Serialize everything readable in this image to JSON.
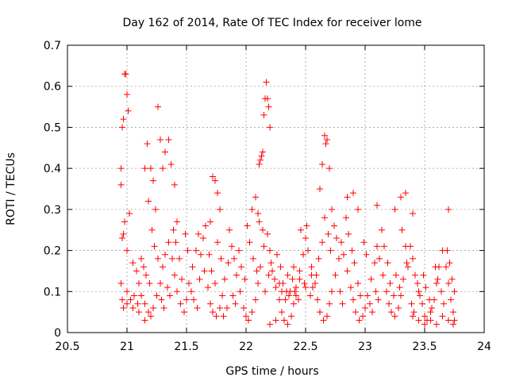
{
  "chart_data": {
    "type": "scatter",
    "title": "Day 162 of 2014, Rate Of TEC Index for receiver lome",
    "xlabel": "GPS time / hours",
    "ylabel": "ROTI / TECUs",
    "xlim": [
      20.5,
      24
    ],
    "ylim": [
      0,
      0.7
    ],
    "xticks": [
      "20.5",
      "21",
      "21.5",
      "22",
      "22.5",
      "23",
      "23.5",
      "24"
    ],
    "yticks": [
      "0",
      "0.1",
      "0.2",
      "0.3",
      "0.4",
      "0.5",
      "0.6",
      "0.7"
    ],
    "grid": true,
    "marker": "plus",
    "series": [
      {
        "name": "ROTI",
        "color": "#ff0000",
        "points": [
          [
            20.95,
            0.4
          ],
          [
            20.95,
            0.36
          ],
          [
            20.96,
            0.5
          ],
          [
            20.97,
            0.52
          ],
          [
            20.98,
            0.63
          ],
          [
            20.99,
            0.63
          ],
          [
            21.0,
            0.58
          ],
          [
            21.01,
            0.54
          ],
          [
            20.96,
            0.23
          ],
          [
            20.97,
            0.24
          ],
          [
            20.98,
            0.27
          ],
          [
            21.0,
            0.2
          ],
          [
            20.95,
            0.12
          ],
          [
            20.96,
            0.08
          ],
          [
            20.97,
            0.06
          ],
          [
            21.02,
            0.29
          ],
          [
            21.15,
            0.4
          ],
          [
            21.17,
            0.46
          ],
          [
            21.2,
            0.4
          ],
          [
            21.22,
            0.37
          ],
          [
            21.26,
            0.55
          ],
          [
            21.28,
            0.47
          ],
          [
            21.3,
            0.4
          ],
          [
            21.32,
            0.44
          ],
          [
            21.35,
            0.47
          ],
          [
            21.37,
            0.41
          ],
          [
            21.4,
            0.36
          ],
          [
            21.18,
            0.32
          ],
          [
            21.24,
            0.3
          ],
          [
            21.42,
            0.27
          ],
          [
            21.72,
            0.38
          ],
          [
            21.74,
            0.37
          ],
          [
            21.76,
            0.34
          ],
          [
            21.78,
            0.3
          ],
          [
            21.7,
            0.27
          ],
          [
            22.05,
            0.3
          ],
          [
            22.08,
            0.33
          ],
          [
            22.1,
            0.29
          ],
          [
            22.12,
            0.42
          ],
          [
            22.13,
            0.43
          ],
          [
            22.14,
            0.44
          ],
          [
            22.15,
            0.53
          ],
          [
            22.16,
            0.57
          ],
          [
            22.17,
            0.61
          ],
          [
            22.18,
            0.57
          ],
          [
            22.19,
            0.55
          ],
          [
            22.2,
            0.5
          ],
          [
            22.11,
            0.41
          ],
          [
            22.62,
            0.35
          ],
          [
            22.64,
            0.41
          ],
          [
            22.66,
            0.48
          ],
          [
            22.67,
            0.46
          ],
          [
            22.68,
            0.47
          ],
          [
            22.7,
            0.4
          ],
          [
            22.72,
            0.3
          ],
          [
            22.85,
            0.33
          ],
          [
            22.9,
            0.34
          ],
          [
            22.94,
            0.3
          ],
          [
            23.1,
            0.31
          ],
          [
            23.25,
            0.3
          ],
          [
            23.3,
            0.33
          ],
          [
            23.34,
            0.34
          ],
          [
            23.4,
            0.29
          ],
          [
            23.7,
            0.3
          ],
          [
            21.05,
            0.17
          ],
          [
            21.08,
            0.15
          ],
          [
            21.1,
            0.12
          ],
          [
            21.12,
            0.09
          ],
          [
            21.15,
            0.07
          ],
          [
            21.18,
            0.05
          ],
          [
            21.2,
            0.04
          ],
          [
            21.22,
            0.06
          ],
          [
            21.25,
            0.09
          ],
          [
            21.28,
            0.12
          ],
          [
            21.3,
            0.16
          ],
          [
            21.32,
            0.19
          ],
          [
            21.35,
            0.22
          ],
          [
            21.38,
            0.18
          ],
          [
            21.4,
            0.14
          ],
          [
            21.42,
            0.1
          ],
          [
            21.45,
            0.07
          ],
          [
            21.48,
            0.05
          ],
          [
            21.5,
            0.08
          ],
          [
            21.52,
            0.12
          ],
          [
            21.55,
            0.16
          ],
          [
            21.58,
            0.2
          ],
          [
            21.6,
            0.24
          ],
          [
            21.62,
            0.19
          ],
          [
            21.65,
            0.15
          ],
          [
            21.68,
            0.11
          ],
          [
            21.7,
            0.07
          ],
          [
            21.72,
            0.05
          ],
          [
            21.75,
            0.04
          ],
          [
            21.78,
            0.06
          ],
          [
            21.8,
            0.09
          ],
          [
            21.82,
            0.13
          ],
          [
            21.85,
            0.17
          ],
          [
            21.88,
            0.21
          ],
          [
            21.9,
            0.18
          ],
          [
            21.92,
            0.14
          ],
          [
            21.95,
            0.1
          ],
          [
            21.98,
            0.06
          ],
          [
            22.0,
            0.04
          ],
          [
            22.02,
            0.03
          ],
          [
            22.05,
            0.05
          ],
          [
            22.08,
            0.08
          ],
          [
            22.1,
            0.12
          ],
          [
            22.12,
            0.16
          ],
          [
            22.15,
            0.21
          ],
          [
            22.18,
            0.24
          ],
          [
            22.2,
            0.2
          ],
          [
            22.22,
            0.15
          ],
          [
            22.25,
            0.11
          ],
          [
            22.28,
            0.08
          ],
          [
            22.3,
            0.05
          ],
          [
            22.32,
            0.03
          ],
          [
            22.35,
            0.02
          ],
          [
            22.38,
            0.04
          ],
          [
            22.4,
            0.07
          ],
          [
            22.42,
            0.11
          ],
          [
            22.45,
            0.15
          ],
          [
            22.48,
            0.19
          ],
          [
            22.5,
            0.23
          ],
          [
            22.52,
            0.2
          ],
          [
            22.55,
            0.16
          ],
          [
            22.58,
            0.12
          ],
          [
            22.6,
            0.08
          ],
          [
            22.62,
            0.05
          ],
          [
            22.65,
            0.03
          ],
          [
            22.68,
            0.04
          ],
          [
            22.7,
            0.07
          ],
          [
            22.72,
            0.1
          ],
          [
            22.75,
            0.14
          ],
          [
            22.78,
            0.18
          ],
          [
            22.8,
            0.22
          ],
          [
            22.82,
            0.19
          ],
          [
            22.85,
            0.15
          ],
          [
            22.88,
            0.11
          ],
          [
            22.9,
            0.08
          ],
          [
            22.92,
            0.05
          ],
          [
            22.95,
            0.03
          ],
          [
            22.98,
            0.04
          ],
          [
            23.0,
            0.06
          ],
          [
            23.02,
            0.09
          ],
          [
            23.05,
            0.13
          ],
          [
            23.08,
            0.17
          ],
          [
            23.1,
            0.21
          ],
          [
            23.12,
            0.18
          ],
          [
            23.15,
            0.14
          ],
          [
            23.18,
            0.1
          ],
          [
            23.2,
            0.07
          ],
          [
            23.22,
            0.05
          ],
          [
            23.25,
            0.04
          ],
          [
            23.28,
            0.06
          ],
          [
            23.3,
            0.09
          ],
          [
            23.32,
            0.13
          ],
          [
            23.35,
            0.17
          ],
          [
            23.38,
            0.21
          ],
          [
            23.4,
            0.18
          ],
          [
            23.42,
            0.14
          ],
          [
            23.45,
            0.1
          ],
          [
            23.48,
            0.07
          ],
          [
            23.5,
            0.04
          ],
          [
            23.52,
            0.03
          ],
          [
            23.55,
            0.05
          ],
          [
            23.58,
            0.08
          ],
          [
            23.6,
            0.12
          ],
          [
            23.62,
            0.16
          ],
          [
            23.65,
            0.2
          ],
          [
            23.68,
            0.16
          ],
          [
            23.7,
            0.12
          ],
          [
            23.72,
            0.08
          ],
          [
            23.74,
            0.05
          ],
          [
            23.75,
            0.03
          ],
          [
            21.0,
            0.1
          ],
          [
            21.03,
            0.08
          ],
          [
            21.06,
            0.09
          ],
          [
            21.09,
            0.07
          ],
          [
            21.12,
            0.18
          ],
          [
            21.14,
            0.16
          ],
          [
            21.16,
            0.14
          ],
          [
            21.19,
            0.12
          ],
          [
            21.21,
            0.25
          ],
          [
            21.23,
            0.21
          ],
          [
            21.26,
            0.18
          ],
          [
            21.29,
            0.08
          ],
          [
            21.31,
            0.06
          ],
          [
            21.34,
            0.11
          ],
          [
            21.36,
            0.09
          ],
          [
            21.39,
            0.25
          ],
          [
            21.41,
            0.22
          ],
          [
            21.44,
            0.18
          ],
          [
            21.46,
            0.13
          ],
          [
            21.49,
            0.24
          ],
          [
            21.51,
            0.2
          ],
          [
            21.54,
            0.1
          ],
          [
            21.56,
            0.08
          ],
          [
            21.59,
            0.06
          ],
          [
            21.61,
            0.13
          ],
          [
            21.64,
            0.23
          ],
          [
            21.66,
            0.26
          ],
          [
            21.69,
            0.19
          ],
          [
            21.71,
            0.15
          ],
          [
            21.74,
            0.12
          ],
          [
            21.76,
            0.22
          ],
          [
            21.79,
            0.18
          ],
          [
            21.81,
            0.04
          ],
          [
            21.84,
            0.06
          ],
          [
            21.86,
            0.25
          ],
          [
            21.89,
            0.09
          ],
          [
            21.91,
            0.07
          ],
          [
            21.94,
            0.2
          ],
          [
            21.96,
            0.16
          ],
          [
            21.99,
            0.13
          ],
          [
            22.01,
            0.26
          ],
          [
            22.03,
            0.22
          ],
          [
            22.06,
            0.18
          ],
          [
            22.09,
            0.15
          ],
          [
            22.11,
            0.27
          ],
          [
            22.14,
            0.25
          ],
          [
            22.16,
            0.1
          ],
          [
            22.19,
            0.14
          ],
          [
            22.21,
            0.17
          ],
          [
            22.24,
            0.13
          ],
          [
            22.26,
            0.19
          ],
          [
            22.29,
            0.16
          ],
          [
            22.31,
            0.12
          ],
          [
            22.34,
            0.1
          ],
          [
            22.36,
            0.09
          ],
          [
            22.39,
            0.13
          ],
          [
            22.41,
            0.1
          ],
          [
            22.44,
            0.08
          ],
          [
            22.46,
            0.25
          ],
          [
            22.49,
            0.12
          ],
          [
            22.51,
            0.26
          ],
          [
            22.54,
            0.09
          ],
          [
            22.56,
            0.11
          ],
          [
            22.59,
            0.14
          ],
          [
            22.61,
            0.18
          ],
          [
            22.64,
            0.22
          ],
          [
            22.66,
            0.28
          ],
          [
            22.69,
            0.24
          ],
          [
            22.71,
            0.2
          ],
          [
            22.74,
            0.26
          ],
          [
            22.76,
            0.23
          ],
          [
            22.79,
            0.1
          ],
          [
            22.81,
            0.07
          ],
          [
            22.84,
            0.28
          ],
          [
            22.86,
            0.24
          ],
          [
            22.89,
            0.2
          ],
          [
            22.91,
            0.17
          ],
          [
            22.94,
            0.12
          ],
          [
            22.96,
            0.09
          ],
          [
            22.99,
            0.22
          ],
          [
            23.01,
            0.19
          ],
          [
            23.04,
            0.07
          ],
          [
            23.06,
            0.05
          ],
          [
            23.09,
            0.1
          ],
          [
            23.11,
            0.08
          ],
          [
            23.14,
            0.25
          ],
          [
            23.16,
            0.21
          ],
          [
            23.19,
            0.17
          ],
          [
            23.21,
            0.12
          ],
          [
            23.24,
            0.09
          ],
          [
            23.26,
            0.14
          ],
          [
            23.29,
            0.11
          ],
          [
            23.31,
            0.25
          ],
          [
            23.34,
            0.21
          ],
          [
            23.36,
            0.16
          ],
          [
            23.39,
            0.07
          ],
          [
            23.41,
            0.05
          ],
          [
            23.44,
            0.12
          ],
          [
            23.46,
            0.09
          ],
          [
            23.49,
            0.14
          ],
          [
            23.51,
            0.11
          ],
          [
            23.54,
            0.08
          ],
          [
            23.56,
            0.06
          ],
          [
            23.59,
            0.16
          ],
          [
            23.61,
            0.13
          ],
          [
            23.64,
            0.1
          ],
          [
            23.66,
            0.07
          ],
          [
            23.69,
            0.2
          ],
          [
            23.71,
            0.17
          ],
          [
            23.73,
            0.13
          ],
          [
            23.75,
            0.1
          ],
          [
            23.5,
            0.02
          ],
          [
            23.55,
            0.03
          ],
          [
            23.6,
            0.02
          ],
          [
            23.65,
            0.04
          ],
          [
            23.7,
            0.03
          ],
          [
            23.74,
            0.02
          ],
          [
            23.45,
            0.03
          ],
          [
            23.4,
            0.04
          ],
          [
            22.2,
            0.02
          ],
          [
            22.25,
            0.03
          ],
          [
            21.15,
            0.03
          ],
          [
            21.1,
            0.05
          ],
          [
            21.05,
            0.06
          ],
          [
            21.0,
            0.07
          ],
          [
            22.35,
            0.14
          ],
          [
            22.4,
            0.16
          ],
          [
            22.45,
            0.13
          ],
          [
            22.5,
            0.11
          ],
          [
            22.55,
            0.14
          ],
          [
            22.3,
            0.1
          ],
          [
            22.33,
            0.08
          ],
          [
            22.28,
            0.12
          ],
          [
            22.37,
            0.1
          ],
          [
            22.42,
            0.09
          ]
        ]
      }
    ]
  }
}
